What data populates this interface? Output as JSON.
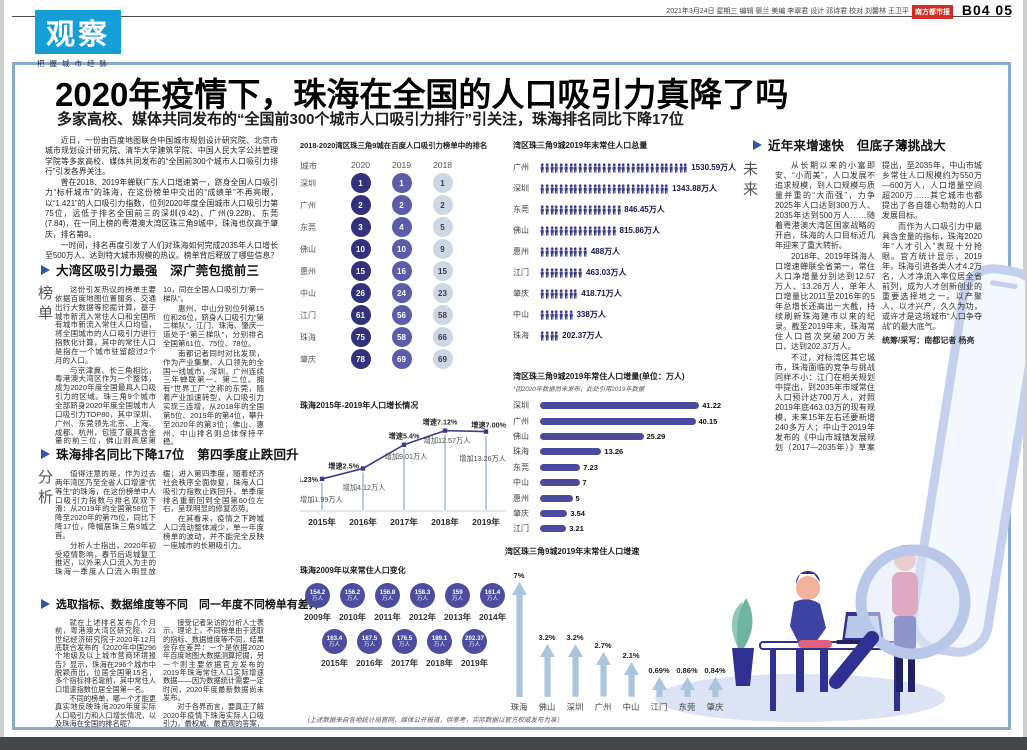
{
  "page": {
    "edition": "B04 05",
    "masthead": {
      "logo": "观察",
      "tagline": "把握城市经脉"
    },
    "credits": "2021年3月24日 星期三 编辑 晏兰 美编 李翠君 设计 邓诗君 校对 刘馨林 王卫平",
    "brand_badge": "南方都市报"
  },
  "article": {
    "headline": "2020年疫情下，珠海在全国的人口吸引力真降了吗",
    "subhead": "多家高校、媒体共同发布的“全国前300个城市人口吸引力排行”引关注，珠海排名同比下降17位",
    "lede": [
      "近日，一份由百度地图联合中国城市规划设计研究院、北京市城市规划设计研究院、清华大学建筑学院、中国人民大学公共管理学院等多家高校、媒体共同发布的“全国前300个城市人口吸引力排行”引发各界关注。",
      "曾在2018、2019年蝉联广东人口增速第一，跻身全国人口吸引力“标杆城市”的珠海，在这份榜单中交出的“成绩单”不再亮眼，以“1.421”的人口吸引力指数，位列2020年度全国城市人口吸引力第75位，远低于排名全国前三的深圳(9.42)、广州(9.228)、东莞(7.84)，在一同上榜的粤港澳大湾区珠三角9城中，珠海也仅高于肇庆，排名第8。",
      "一时间，排名再度引发了人们对珠海如何完成2035年人口增长至500万人、达到特大城市规模的热议。榜单背后释放了哪些信息？我们又应该如何正确解读呢？"
    ]
  },
  "sections": {
    "bangdan": {
      "side_label": "榜单",
      "heading": "大湾区吸引力最强　深广莞包揽前三",
      "paras": [
        "这份引发热议的榜单主要依据百度地图位置服务、交通出行大数据等挖掘计算，基于城市新流入常住人口和全国所有城市新流入常住人口均值，将全国城市的人口吸引力进行指数化计算，其中的常住人口是指在一个城市驻留超过2个月的人口。",
        "与京津冀、长三角相比，粤港澳大湾区作为一个整体，成为2020年度全国最具人口吸引力的区域。珠三角9个城市全部跻身2020年度全国城市人口吸引力TOP80，其中深圳、广州、东莞领先北京、上海、成都、杭州，包揽了最具含金量的前三位，佛山则高居第10，同在全国人口吸引力“第一梯队”。",
        "惠州、中山分别位列第15位和26位，跻身人口吸引力“第二梯队”，江门、珠海、肇庆一道处于“第三梯队”，分别排名全国第61位、75位、78位。",
        "南都记者同时对比发现，作为产业集聚、人口领先的全国一线城市，深圳、广州连续三年蝉联第一、第二位。拥有“世界工厂”之称的东莞，随着产业加速转型，人口吸引力实现三连增，从2018年的全国第5位、2019年的第4位，攀升至2020年的第3位；佛山、惠州、中山排名则总体保持平稳。"
      ]
    },
    "fenxi": {
      "side_label": "分析",
      "heading": "珠海排名同比下降17位　第四季度止跌回升",
      "paras": [
        "值得注意的是，作为过去两年湾区乃至全省人口增速“优等生”的珠海，在这份榜单中人口吸引力指数与排名双双下滑：从2019年的全国第58位下降至2020年的第75位，同比下降17位，降幅居珠三角9城之首。",
        "分析人士指出，2020年初受疫情影响，春节后返城复工推迟，以外来人口流入为主的珠海一季度人口流入明显放缓；进入第四季度，随着经济社会秩序全面恢复，珠海人口吸引力指数止跌回升，单季度排名重新回到全国第60位左右，呈现明显的修复态势。",
        "在其看来，疫情之下跨城人口流动整体减少，单一年度榜单的波动，并不能完全反映一座城市的长期吸引力。"
      ]
    },
    "xuanqu": {
      "heading": "选取指标、数据维度等不同　同一年度不同榜单有差异",
      "paras": [
        "就在上述排名发布几个月前，粤港澳大湾区研究院、21世纪经济研究院于2020年12月底联合发布的《2020年中国296个地级及以上城市营商环境报告》显示，珠海在296个城市中脱颖而出，位居全国第15名，多个指标排名靠前，其中常住人口增速指数位居全国第一名。",
        "不同的榜单，哪一个才能更真实地反映珠海2020年度实际人口吸引力和人口增长情况，以及珠海在全国的排名呢？",
        "接受记者采访的分析人士表示，理论上，不同榜单由于选取的指标、数据维度等不同，结果会存在差异：一个是依据2020年百度地图大数据测算挖掘，另一个则主要依据官方发布的2019年珠海常住人口实际增速数据——因为数据统计需要一定时间，2020年度最新数据尚未发布。",
        "对于各界而言，要真正了解2020年疫情下珠海实际人口吸引力，最权威、最直观的答案，莫过于要等到通常在每年3月底或4月初发布的珠海最新人口数据发布后揭晓。"
      ]
    },
    "weilai": {
      "side_label": "未来",
      "heading": "近年来增速快　但底子薄挑战大",
      "paras": [
        "从长期以来的小富即安、“小而美”，人口发展不追求规模，到人口规模与质量并重的“大而强”，力争2025年人口达到300万人、2035年达到500万人……随着粤港澳大湾区国家战略的开启，珠海的人口目标近几年迎来了重大转折。",
        "2018年、2019年珠海人口增速蝉联全省第一，常住人口净增量分别达到12.57万人、13.26万人，单年人口增量比2011至2016年的5年总增长还高出一大截，持续刷新珠海建市以来的纪录。截至2019年末，珠海常住人口首次突破200万关口，达到202.37万人。",
        "不过，对标湾区其它城市，珠海面临的竞争与挑战同样不小：江门在相关规划中提出，到2035年市域常住人口预计达700万人，对照2019年底463.03万的现有规模，未来15年左右还要新增240多万人；中山于2019年发布的《中山市城镇发展规划（2017—2035年）》草案提出，至2035年，中山市城乡常住人口规模约为550万—600万人，人口增量空间超200万……其它城市也都提出了各自雄心勃勃的人口发展目标。",
        "而作为人口吸引力中最具含金量的指标，珠海2020年“人才引入”表现十分抢眼。官方统计显示，2019年，珠海引进各类人才4.2万名，人才净流入率位居全省前列，成为人才创新创业的重要选择地之一。以产聚人、以才兴产，久久为功，或许才是这场城市“人口争夺战”的最大底气。"
      ],
      "byline": "统筹/采写：南都记者 杨亮"
    }
  },
  "charts_footnote": "（上述数据来自各地统计局官网、媒体公开报道，供参考，实际数据以官方权威发布为准）",
  "chart_data": [
    {
      "type": "table",
      "title": "2018-2020湾区珠三角9城在百度人口吸引力榜单中的排名",
      "columns": [
        "城市",
        "2020",
        "2019",
        "2018"
      ],
      "rows": [
        [
          "深圳",
          1,
          1,
          1
        ],
        [
          "广州",
          2,
          2,
          2
        ],
        [
          "东莞",
          3,
          4,
          5
        ],
        [
          "佛山",
          10,
          10,
          9
        ],
        [
          "惠州",
          15,
          16,
          15
        ],
        [
          "中山",
          26,
          24,
          23
        ],
        [
          "江门",
          61,
          56,
          58
        ],
        [
          "珠海",
          75,
          58,
          66
        ],
        [
          "肇庆",
          78,
          69,
          69
        ]
      ]
    },
    {
      "type": "line",
      "title": "珠海2015年-2019年人口增长情况",
      "x": [
        "2015年",
        "2016年",
        "2017年",
        "2018年",
        "2019年"
      ],
      "series": [
        {
          "name": "人口增速%",
          "values": [
            1.23,
            2.5,
            5.4,
            7.12,
            7.0
          ]
        }
      ],
      "point_labels": [
        "增速1.23%",
        "增速2.5%",
        "增速5.4%",
        "增速7.12%",
        "增速7.00%"
      ],
      "increase_labels": [
        "增加1.99万人",
        "增加4.12万人",
        "增加9.01万人",
        "增加12.57万人",
        "增加13.26万人"
      ],
      "ylim": [
        0,
        8
      ],
      "grid": false,
      "legend": "none"
    },
    {
      "type": "circle-series",
      "title": "珠海2009年以来常住人口变化",
      "categories": [
        "2009年",
        "2010年",
        "2011年",
        "2012年",
        "2013年",
        "2014年",
        "2015年",
        "2016年",
        "2017年",
        "2018年",
        "2019年"
      ],
      "values": [
        154.2,
        156.2,
        156.8,
        158.3,
        159,
        161.4,
        163.4,
        167.5,
        176.5,
        189.1,
        202.37
      ],
      "value_labels": [
        "154.2",
        "156.2",
        "156.8",
        "158.3",
        "159",
        "161.4",
        "163.4",
        "167.5",
        "176.5",
        "189.1",
        "202.37"
      ],
      "unit": "万人"
    },
    {
      "type": "pictograph",
      "title": "湾区珠三角9城2019年末常住人口总量",
      "unit": "万人",
      "rows": [
        {
          "city": "广州",
          "value": 1530.59,
          "label": "1530.59万人",
          "icons": 31
        },
        {
          "city": "深圳",
          "value": 1343.88,
          "label": "1343.88万人",
          "icons": 27
        },
        {
          "city": "东莞",
          "value": 846.45,
          "label": "846.45万人",
          "icons": 17
        },
        {
          "city": "佛山",
          "value": 815.86,
          "label": "815.86万人",
          "icons": 16
        },
        {
          "city": "惠州",
          "value": 488,
          "label": "488万人",
          "icons": 10
        },
        {
          "city": "江门",
          "value": 463.03,
          "label": "463.03万人",
          "icons": 9
        },
        {
          "city": "肇庆",
          "value": 418.71,
          "label": "418.71万人",
          "icons": 8
        },
        {
          "city": "中山",
          "value": 338,
          "label": "338万人",
          "icons": 7
        },
        {
          "city": "珠海",
          "value": 202.37,
          "label": "202.37万人",
          "icons": 4
        }
      ]
    },
    {
      "type": "bar",
      "title": "湾区珠三角9城2019年常住人口增量(单位：万人)",
      "note": "*因2020年数据尚未发布，此处引用2019年数据",
      "categories": [
        "深圳",
        "广州",
        "佛山",
        "珠海",
        "东莞",
        "中山",
        "惠州",
        "肇庆",
        "江门"
      ],
      "values": [
        41.22,
        40.15,
        25.29,
        13.26,
        7.23,
        7,
        5,
        3.54,
        3.21
      ],
      "value_labels": [
        "41.22",
        "40.15",
        "25.29",
        "13.26",
        "7.23",
        "7",
        "5",
        "3.54",
        "3.21"
      ],
      "xlim": [
        0,
        45
      ]
    },
    {
      "type": "arrow",
      "title": "湾区珠三角9城2019年末常住人口增速",
      "categories": [
        "珠海",
        "佛山",
        "深圳",
        "广州",
        "中山",
        "江门",
        "东莞",
        "肇庆"
      ],
      "values": [
        7,
        3.2,
        3.2,
        2.7,
        2.1,
        0.69,
        0.86,
        0.84
      ],
      "value_labels": [
        "7%",
        "3.2%",
        "3.2%",
        "2.7%",
        "2.1%",
        "0.69%",
        "0.86%",
        "0.84%"
      ]
    }
  ],
  "colors": {
    "masthead_cyan": "#149fd8",
    "badge_red": "#cf2e24",
    "frame_blue": "#86abcf",
    "rank_2020": "#31317c",
    "rank_2019": "#5c5caa",
    "rank_2018": "#cdd7e3",
    "indigo": "#4a4a9e",
    "arrow_blue": "#abc5df",
    "heading_triangle": "#2b59a8"
  }
}
